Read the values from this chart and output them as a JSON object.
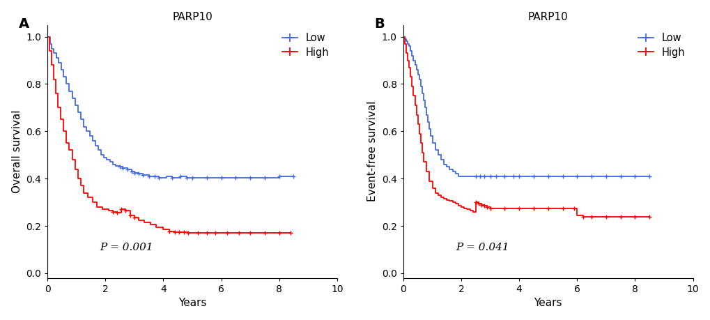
{
  "panel_A": {
    "title": "PARP10",
    "ylabel": "Overall survival",
    "xlabel": "Years",
    "pvalue": "P = 0.001",
    "xlim": [
      0,
      10
    ],
    "ylim": [
      -0.02,
      1.05
    ],
    "yticks": [
      0.0,
      0.2,
      0.4,
      0.6,
      0.8,
      1.0
    ],
    "xticks": [
      0,
      2,
      4,
      6,
      8,
      10
    ],
    "low_color": "#4169E1",
    "high_color": "#FF0000",
    "low_steps_x": [
      0,
      0.08,
      0.15,
      0.22,
      0.3,
      0.38,
      0.48,
      0.55,
      0.65,
      0.75,
      0.85,
      0.95,
      1.05,
      1.15,
      1.25,
      1.35,
      1.45,
      1.55,
      1.65,
      1.75,
      1.85,
      1.95,
      2.05,
      2.15,
      2.25,
      2.35,
      2.5,
      2.6,
      2.75,
      2.9,
      3.0,
      3.15,
      3.3,
      3.5,
      3.7,
      3.85,
      4.1,
      4.3,
      4.6,
      4.8,
      5.0,
      5.5,
      6.0,
      6.5,
      7.0,
      7.5,
      8.0,
      8.5
    ],
    "low_steps_y": [
      1.0,
      0.97,
      0.95,
      0.93,
      0.91,
      0.89,
      0.86,
      0.83,
      0.8,
      0.77,
      0.74,
      0.71,
      0.68,
      0.65,
      0.62,
      0.6,
      0.58,
      0.56,
      0.54,
      0.52,
      0.5,
      0.49,
      0.48,
      0.47,
      0.46,
      0.455,
      0.45,
      0.445,
      0.44,
      0.43,
      0.425,
      0.42,
      0.415,
      0.41,
      0.408,
      0.405,
      0.41,
      0.405,
      0.41,
      0.405,
      0.405,
      0.405,
      0.405,
      0.405,
      0.405,
      0.405,
      0.41,
      0.41
    ],
    "low_censor_x": [
      2.5,
      2.6,
      2.75,
      2.9,
      3.0,
      3.15,
      3.3,
      3.5,
      3.7,
      3.85,
      4.3,
      4.6,
      4.8,
      5.0,
      5.5,
      6.0,
      6.5,
      7.0,
      7.5,
      8.0,
      8.5
    ],
    "low_censor_y": [
      0.45,
      0.445,
      0.44,
      0.43,
      0.425,
      0.42,
      0.415,
      0.41,
      0.408,
      0.405,
      0.405,
      0.41,
      0.405,
      0.405,
      0.405,
      0.405,
      0.405,
      0.405,
      0.405,
      0.41,
      0.41
    ],
    "high_steps_x": [
      0,
      0.07,
      0.14,
      0.2,
      0.28,
      0.36,
      0.45,
      0.55,
      0.65,
      0.75,
      0.85,
      0.95,
      1.05,
      1.15,
      1.25,
      1.4,
      1.55,
      1.7,
      1.9,
      2.1,
      2.25,
      2.4,
      2.55,
      2.7,
      2.85,
      3.0,
      3.15,
      3.35,
      3.55,
      3.75,
      4.0,
      4.2,
      4.4,
      4.55,
      4.7,
      4.85,
      8.4
    ],
    "high_steps_y": [
      1.0,
      0.94,
      0.88,
      0.82,
      0.76,
      0.7,
      0.65,
      0.6,
      0.55,
      0.52,
      0.48,
      0.44,
      0.4,
      0.37,
      0.34,
      0.32,
      0.3,
      0.28,
      0.27,
      0.265,
      0.26,
      0.255,
      0.27,
      0.265,
      0.245,
      0.235,
      0.225,
      0.215,
      0.205,
      0.195,
      0.185,
      0.178,
      0.175,
      0.174,
      0.173,
      0.172,
      0.172
    ],
    "high_censor_x": [
      2.25,
      2.4,
      2.55,
      2.7,
      2.85,
      3.0,
      4.2,
      4.4,
      4.55,
      4.7,
      4.85,
      5.2,
      5.5,
      5.8,
      6.2,
      6.6,
      7.0,
      7.5,
      8.0,
      8.4
    ],
    "high_censor_y": [
      0.26,
      0.255,
      0.27,
      0.265,
      0.245,
      0.235,
      0.178,
      0.175,
      0.174,
      0.173,
      0.172,
      0.172,
      0.172,
      0.172,
      0.172,
      0.172,
      0.172,
      0.172,
      0.172,
      0.172
    ]
  },
  "panel_B": {
    "title": "PARP10",
    "ylabel": "Event-free survival",
    "xlabel": "Years",
    "pvalue": "P = 0.041",
    "xlim": [
      0,
      10
    ],
    "ylim": [
      -0.02,
      1.05
    ],
    "yticks": [
      0.0,
      0.2,
      0.4,
      0.6,
      0.8,
      1.0
    ],
    "xticks": [
      0,
      2,
      4,
      6,
      8,
      10
    ],
    "low_color": "#4169E1",
    "high_color": "#FF0000",
    "low_steps_x": [
      0,
      0.05,
      0.1,
      0.15,
      0.2,
      0.25,
      0.3,
      0.35,
      0.4,
      0.45,
      0.5,
      0.55,
      0.6,
      0.65,
      0.7,
      0.75,
      0.8,
      0.85,
      0.9,
      0.95,
      1.0,
      1.1,
      1.2,
      1.3,
      1.4,
      1.5,
      1.6,
      1.7,
      1.8,
      1.9,
      2.0,
      2.1,
      2.2,
      2.3,
      2.4,
      2.5,
      2.65,
      2.8,
      3.0,
      3.2,
      3.5,
      3.8,
      4.0,
      4.5,
      5.0,
      5.5,
      6.0,
      6.5,
      7.0,
      7.5,
      8.0,
      8.5
    ],
    "low_steps_y": [
      1.0,
      0.99,
      0.98,
      0.97,
      0.96,
      0.94,
      0.92,
      0.9,
      0.88,
      0.86,
      0.84,
      0.82,
      0.79,
      0.76,
      0.73,
      0.7,
      0.67,
      0.64,
      0.61,
      0.58,
      0.55,
      0.52,
      0.5,
      0.48,
      0.46,
      0.45,
      0.44,
      0.43,
      0.42,
      0.41,
      0.41,
      0.41,
      0.41,
      0.41,
      0.41,
      0.41,
      0.41,
      0.41,
      0.41,
      0.41,
      0.41,
      0.41,
      0.41,
      0.41,
      0.41,
      0.41,
      0.41,
      0.41,
      0.41,
      0.41,
      0.41,
      0.41
    ],
    "low_censor_x": [
      2.5,
      2.65,
      2.8,
      3.0,
      3.2,
      3.5,
      3.8,
      4.0,
      4.5,
      5.0,
      5.5,
      6.0,
      6.5,
      7.0,
      7.5,
      8.0,
      8.5
    ],
    "low_censor_y": [
      0.41,
      0.41,
      0.41,
      0.41,
      0.41,
      0.41,
      0.41,
      0.41,
      0.41,
      0.41,
      0.41,
      0.41,
      0.41,
      0.41,
      0.41,
      0.41,
      0.41
    ],
    "high_steps_x": [
      0,
      0.05,
      0.1,
      0.15,
      0.2,
      0.25,
      0.3,
      0.35,
      0.4,
      0.45,
      0.5,
      0.55,
      0.6,
      0.65,
      0.7,
      0.8,
      0.9,
      1.0,
      1.1,
      1.2,
      1.3,
      1.4,
      1.5,
      1.6,
      1.7,
      1.8,
      1.9,
      2.0,
      2.1,
      2.2,
      2.3,
      2.4,
      2.5,
      2.6,
      2.7,
      2.8,
      2.9,
      3.0,
      3.5,
      4.0,
      4.5,
      5.0,
      5.5,
      5.9,
      6.0,
      6.2,
      6.5,
      7.0,
      7.5,
      8.0,
      8.5
    ],
    "high_steps_y": [
      1.0,
      0.97,
      0.93,
      0.9,
      0.87,
      0.83,
      0.79,
      0.75,
      0.71,
      0.67,
      0.63,
      0.59,
      0.55,
      0.51,
      0.47,
      0.43,
      0.39,
      0.36,
      0.34,
      0.33,
      0.32,
      0.315,
      0.31,
      0.305,
      0.3,
      0.295,
      0.285,
      0.28,
      0.275,
      0.27,
      0.265,
      0.26,
      0.3,
      0.295,
      0.29,
      0.285,
      0.28,
      0.275,
      0.275,
      0.275,
      0.275,
      0.275,
      0.275,
      0.275,
      0.245,
      0.24,
      0.24,
      0.24,
      0.24,
      0.24,
      0.24
    ],
    "high_censor_x": [
      2.5,
      2.6,
      2.7,
      2.8,
      2.9,
      3.0,
      3.5,
      4.0,
      4.5,
      5.0,
      5.5,
      5.9,
      6.2,
      6.5,
      7.0,
      7.5,
      8.0,
      8.5
    ],
    "high_censor_y": [
      0.3,
      0.295,
      0.29,
      0.285,
      0.28,
      0.275,
      0.275,
      0.275,
      0.275,
      0.275,
      0.275,
      0.275,
      0.24,
      0.24,
      0.24,
      0.24,
      0.24,
      0.24
    ]
  }
}
